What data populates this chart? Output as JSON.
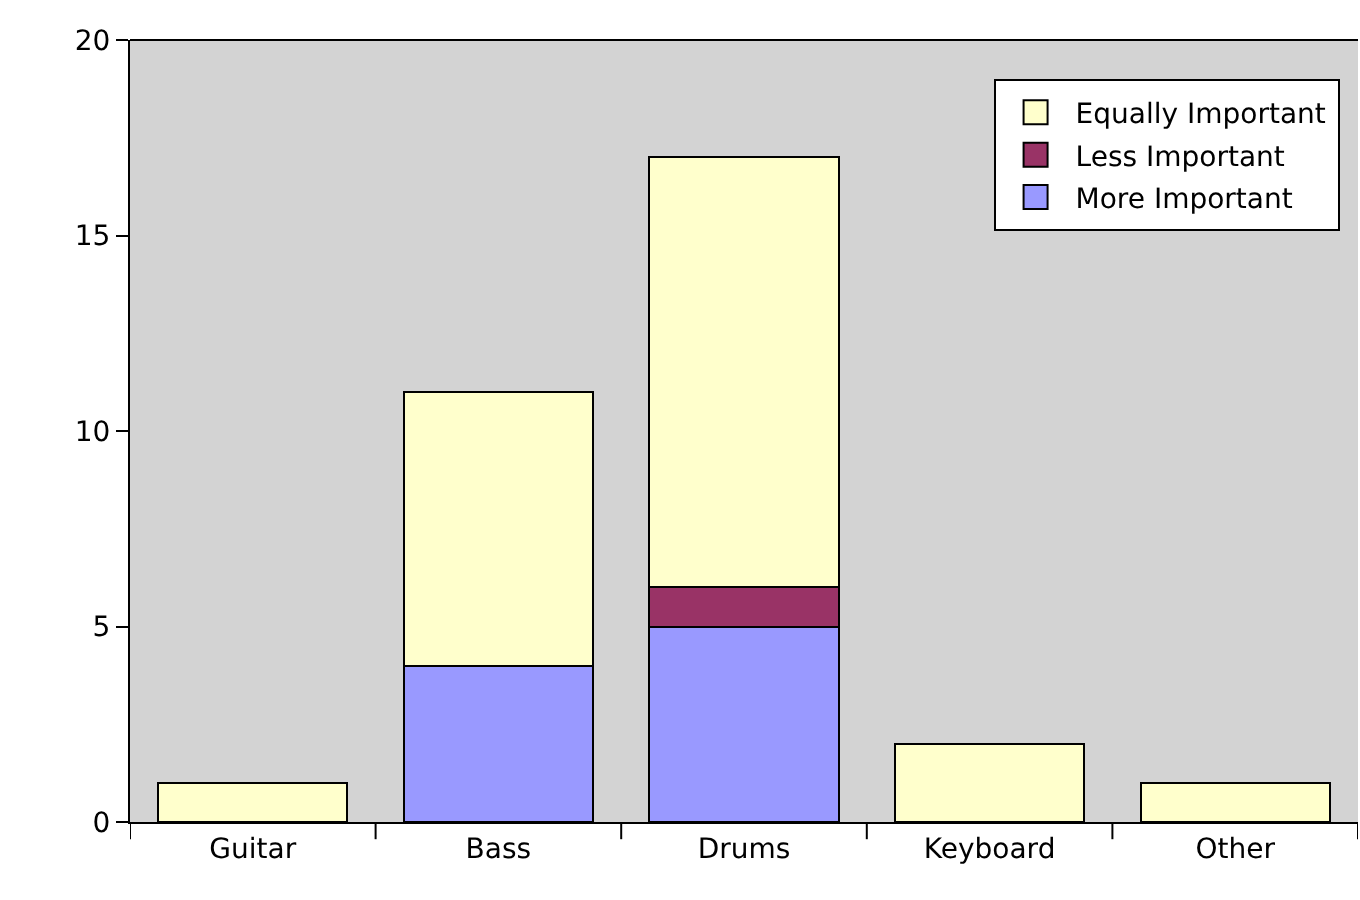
{
  "chart_data": {
    "type": "bar",
    "stacked": true,
    "categories": [
      "Guitar",
      "Bass",
      "Drums",
      "Keyboard",
      "Other"
    ],
    "series": [
      {
        "name": "More Important",
        "color": "#9999ff",
        "values": [
          0,
          4,
          5,
          0,
          0
        ]
      },
      {
        "name": "Less Important",
        "color": "#993366",
        "values": [
          0,
          0,
          1,
          0,
          0
        ]
      },
      {
        "name": "Equally Important",
        "color": "#ffffcc",
        "values": [
          1,
          7,
          11,
          2,
          1
        ]
      }
    ],
    "ylim": [
      0,
      20
    ],
    "yticks": [
      0,
      5,
      10,
      15,
      20
    ],
    "grid": false,
    "legend": "top right"
  }
}
